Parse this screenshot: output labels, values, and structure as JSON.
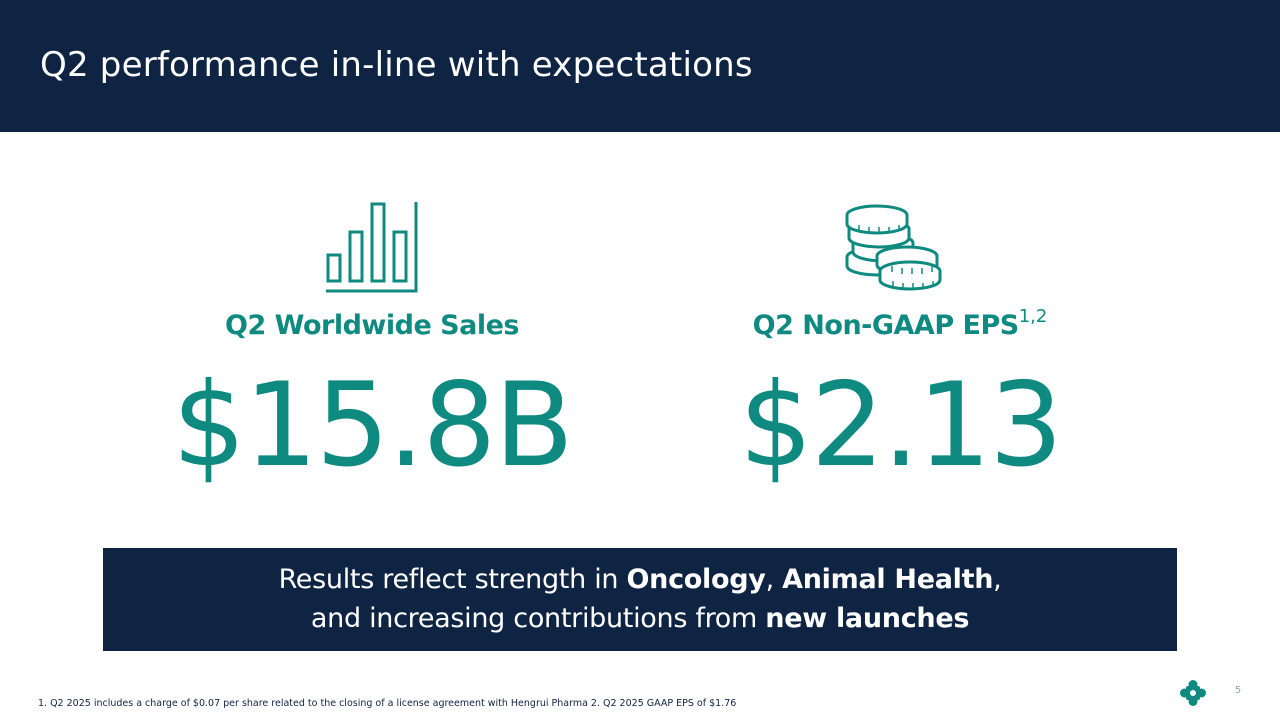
{
  "header": {
    "title": "Q2 performance in-line with expectations"
  },
  "metrics": [
    {
      "icon": "bar-chart-icon",
      "label": "Q2 Worldwide Sales",
      "superscript": "",
      "value": "$15.8B"
    },
    {
      "icon": "coins-icon",
      "label": "Q2 Non-GAAP EPS",
      "superscript": "1,2",
      "value": "$2.13"
    }
  ],
  "banner": {
    "line1_prefix": "Results reflect strength in ",
    "line1_bold1": "Oncology",
    "line1_sep": ", ",
    "line1_bold2": "Animal Health",
    "line1_suffix": ",",
    "line2_prefix": "and increasing contributions from ",
    "line2_bold": "new launches"
  },
  "footnote": "1. Q2 2025 includes a charge of $0.07 per share related to the closing of a license agreement with Hengrui Pharma  2. Q2 2025 GAAP EPS of $1.76",
  "page_number": "5",
  "logo": "company-logo-icon",
  "colors": {
    "navy": "#0f2343",
    "teal": "#0f8a80",
    "white": "#ffffff",
    "gray": "#9aa3ad"
  }
}
